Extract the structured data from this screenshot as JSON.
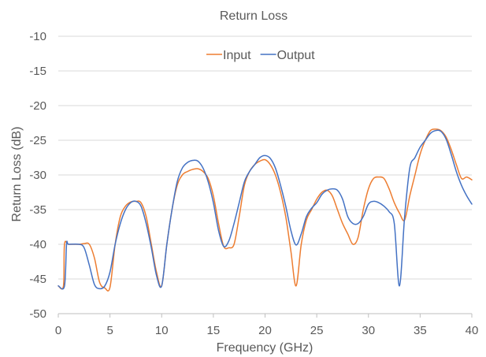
{
  "chart_data": {
    "type": "line",
    "title": "Return Loss",
    "xlabel": "Frequency (GHz)",
    "ylabel": "Return Loss (dB)",
    "xlim": [
      0,
      40
    ],
    "ylim": [
      -50,
      -10
    ],
    "xticks": [
      0,
      5,
      10,
      15,
      20,
      25,
      30,
      35,
      40
    ],
    "yticks": [
      -10,
      -15,
      -20,
      -25,
      -30,
      -35,
      -40,
      -45,
      -50
    ],
    "grid": "horizontal",
    "legend_position": "top-center",
    "series": [
      {
        "name": "Input",
        "color": "#ED7D31",
        "x": [
          0,
          0.5,
          0.6,
          1,
          2,
          2.5,
          3,
          3.5,
          4,
          4.5,
          5,
          5.5,
          6,
          6.5,
          7,
          7.5,
          8,
          8.5,
          9,
          9.5,
          10,
          10.5,
          11,
          11.5,
          12,
          12.5,
          13,
          13.5,
          14,
          14.5,
          15,
          15.5,
          16,
          16.5,
          17,
          17.5,
          18,
          18.5,
          19,
          19.5,
          20,
          20.5,
          21,
          21.5,
          22,
          22.5,
          23,
          23.5,
          24,
          24.5,
          25,
          25.5,
          26,
          26.5,
          27,
          27.5,
          28,
          28.5,
          29,
          29.5,
          30,
          30.5,
          31,
          31.5,
          32,
          32.5,
          33,
          33.5,
          34,
          34.5,
          35,
          35.5,
          36,
          36.5,
          37,
          37.5,
          38,
          38.5,
          39,
          39.5,
          40
        ],
        "y": [
          -46,
          -46,
          -40,
          -40,
          -40,
          -39.9,
          -40,
          -42,
          -45.5,
          -46.3,
          -46.2,
          -40,
          -36,
          -34.5,
          -33.9,
          -33.8,
          -34,
          -36,
          -40,
          -44,
          -46,
          -40,
          -35,
          -31.5,
          -30,
          -29.5,
          -29.2,
          -29.1,
          -29.5,
          -30.5,
          -33,
          -37,
          -40.3,
          -40.5,
          -40,
          -36,
          -31.5,
          -29.5,
          -28.5,
          -28,
          -27.8,
          -28.5,
          -30,
          -32.5,
          -36,
          -41,
          -46,
          -40,
          -36.5,
          -35,
          -33.5,
          -32.5,
          -32.2,
          -33,
          -35,
          -37,
          -38.5,
          -40,
          -39,
          -35,
          -32,
          -30.5,
          -30.3,
          -30.5,
          -32,
          -34,
          -35.5,
          -36.5,
          -33,
          -30,
          -27,
          -25,
          -23.6,
          -23.4,
          -23.6,
          -24.5,
          -26.3,
          -28.5,
          -30.5,
          -30.3,
          -30.7
        ]
      },
      {
        "name": "Output",
        "color": "#4472C4",
        "x": [
          0,
          0.6,
          0.8,
          1,
          2,
          2.5,
          3,
          3.5,
          4,
          4.5,
          5,
          5.5,
          6,
          6.5,
          7,
          7.5,
          8,
          8.5,
          9,
          9.5,
          10,
          10.5,
          11,
          11.5,
          12,
          12.5,
          13,
          13.5,
          14,
          14.5,
          15,
          15.5,
          16,
          16.5,
          17,
          17.5,
          18,
          18.5,
          19,
          19.5,
          20,
          20.5,
          21,
          21.5,
          22,
          22.5,
          23,
          23.5,
          24,
          24.5,
          25,
          25.5,
          26,
          26.5,
          27,
          27.5,
          28,
          28.5,
          29,
          29.5,
          30,
          30.5,
          31,
          31.5,
          32,
          32.5,
          33,
          33.5,
          34,
          34.5,
          35,
          35.5,
          36,
          36.5,
          37,
          37.5,
          38,
          38.5,
          39,
          39.5,
          40
        ],
        "y": [
          -46,
          -46,
          -40,
          -40,
          -40,
          -40.5,
          -43,
          -45.8,
          -46.4,
          -46,
          -44,
          -40,
          -37,
          -35,
          -34,
          -33.8,
          -34.5,
          -37,
          -40.5,
          -44.5,
          -46,
          -40,
          -35,
          -31,
          -29,
          -28.2,
          -27.9,
          -28,
          -29,
          -31,
          -34,
          -38,
          -40.3,
          -39.5,
          -37,
          -34,
          -31,
          -29.5,
          -28.5,
          -27.5,
          -27.2,
          -27.6,
          -29,
          -31.5,
          -34.5,
          -38,
          -40.1,
          -38.5,
          -36,
          -34.8,
          -34,
          -32.8,
          -32.2,
          -32,
          -32.2,
          -33.5,
          -36,
          -37,
          -37,
          -36,
          -34.2,
          -33.8,
          -34,
          -34.5,
          -35.3,
          -37,
          -46,
          -36,
          -29,
          -27.5,
          -26,
          -25,
          -24,
          -23.6,
          -23.7,
          -24.8,
          -27,
          -29.5,
          -31.5,
          -33,
          -34.2
        ]
      }
    ]
  }
}
